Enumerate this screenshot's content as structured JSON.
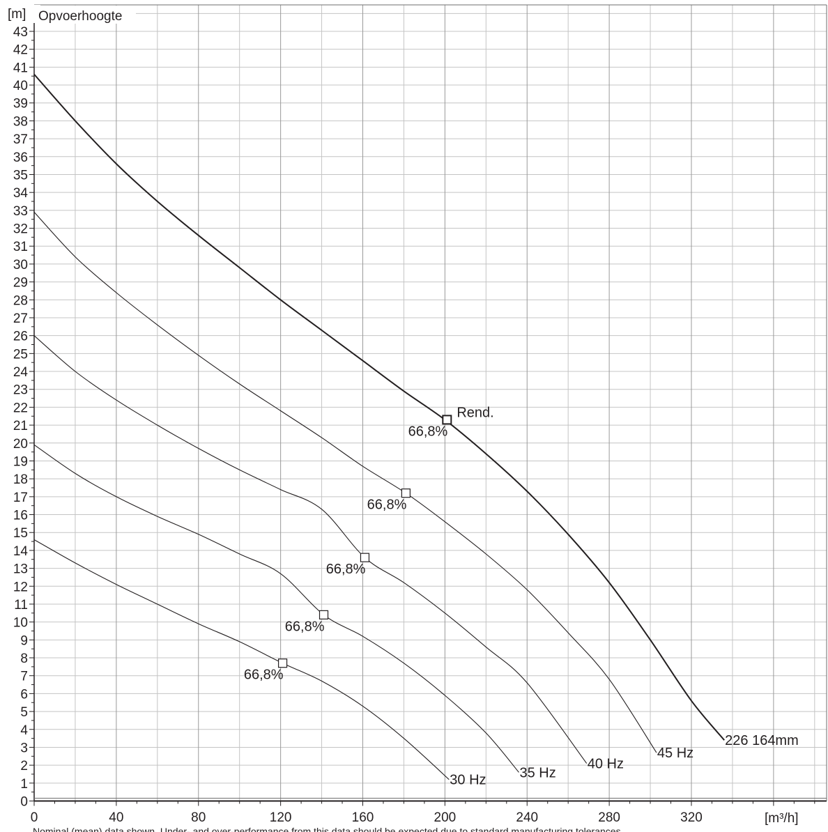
{
  "chart_data": {
    "type": "line",
    "y_unit_label": "[m]",
    "y_title": "Opvoerhoogte",
    "x_unit_label": "[m³/h]",
    "xlim": [
      0,
      386
    ],
    "ylim": [
      0,
      44
    ],
    "x_ticks": [
      0,
      40,
      80,
      120,
      160,
      200,
      240,
      280,
      320
    ],
    "y_ticks": [
      1,
      2,
      3,
      4,
      5,
      6,
      7,
      8,
      9,
      10,
      11,
      12,
      13,
      14,
      15,
      16,
      17,
      18,
      19,
      20,
      21,
      22,
      23,
      24,
      25,
      26,
      27,
      28,
      29,
      30,
      31,
      32,
      33,
      34,
      35,
      36,
      37,
      38,
      39,
      40,
      41,
      42,
      43
    ],
    "grid": true,
    "series": [
      {
        "name": "226 164mm",
        "bold": true,
        "points": [
          [
            0,
            40.6
          ],
          [
            20,
            38.0
          ],
          [
            40,
            35.6
          ],
          [
            60,
            33.5
          ],
          [
            80,
            31.6
          ],
          [
            100,
            29.8
          ],
          [
            120,
            28.0
          ],
          [
            140,
            26.3
          ],
          [
            160,
            24.6
          ],
          [
            180,
            22.9
          ],
          [
            200,
            21.3
          ],
          [
            220,
            19.4
          ],
          [
            240,
            17.3
          ],
          [
            260,
            14.9
          ],
          [
            280,
            12.2
          ],
          [
            300,
            9.0
          ],
          [
            320,
            5.6
          ],
          [
            336,
            3.4
          ]
        ],
        "efficiency_point": {
          "x": 201,
          "y": 21.3,
          "label": "66,8%"
        },
        "efficiency_title": "Rend."
      },
      {
        "name": "45 Hz",
        "bold": false,
        "points": [
          [
            0,
            32.9
          ],
          [
            20,
            30.4
          ],
          [
            40,
            28.4
          ],
          [
            60,
            26.6
          ],
          [
            80,
            24.9
          ],
          [
            100,
            23.3
          ],
          [
            120,
            21.8
          ],
          [
            140,
            20.3
          ],
          [
            160,
            18.7
          ],
          [
            181,
            17.2
          ],
          [
            200,
            15.6
          ],
          [
            220,
            13.8
          ],
          [
            240,
            11.8
          ],
          [
            260,
            9.4
          ],
          [
            280,
            6.8
          ],
          [
            303,
            2.7
          ]
        ],
        "efficiency_point": {
          "x": 181,
          "y": 17.2,
          "label": "66,8%"
        }
      },
      {
        "name": "40 Hz",
        "bold": false,
        "points": [
          [
            0,
            26.0
          ],
          [
            20,
            24.0
          ],
          [
            40,
            22.4
          ],
          [
            60,
            21.0
          ],
          [
            80,
            19.7
          ],
          [
            100,
            18.5
          ],
          [
            120,
            17.4
          ],
          [
            140,
            16.3
          ],
          [
            161,
            13.6
          ],
          [
            180,
            12.2
          ],
          [
            200,
            10.5
          ],
          [
            220,
            8.6
          ],
          [
            240,
            6.6
          ],
          [
            269,
            2.1
          ]
        ],
        "efficiency_point": {
          "x": 161,
          "y": 13.6,
          "label": "66,8%"
        }
      },
      {
        "name": "35 Hz",
        "bold": false,
        "points": [
          [
            0,
            19.9
          ],
          [
            20,
            18.3
          ],
          [
            40,
            17.0
          ],
          [
            60,
            15.9
          ],
          [
            80,
            14.9
          ],
          [
            100,
            13.8
          ],
          [
            120,
            12.7
          ],
          [
            141,
            10.4
          ],
          [
            160,
            9.2
          ],
          [
            180,
            7.7
          ],
          [
            200,
            5.9
          ],
          [
            220,
            3.8
          ],
          [
            236,
            1.6
          ]
        ],
        "efficiency_point": {
          "x": 141,
          "y": 10.4,
          "label": "66,8%"
        }
      },
      {
        "name": "30 Hz",
        "bold": false,
        "points": [
          [
            0,
            14.6
          ],
          [
            20,
            13.3
          ],
          [
            40,
            12.1
          ],
          [
            60,
            11.0
          ],
          [
            80,
            9.9
          ],
          [
            100,
            8.9
          ],
          [
            121,
            7.7
          ],
          [
            140,
            6.7
          ],
          [
            160,
            5.3
          ],
          [
            180,
            3.5
          ],
          [
            202,
            1.2
          ]
        ],
        "efficiency_point": {
          "x": 121,
          "y": 7.7,
          "label": "66,8%"
        }
      }
    ]
  },
  "footnote": "Nominal (mean) data shown. Under- and over-performance from this data should be expected due to standard manufacturing tolerances."
}
